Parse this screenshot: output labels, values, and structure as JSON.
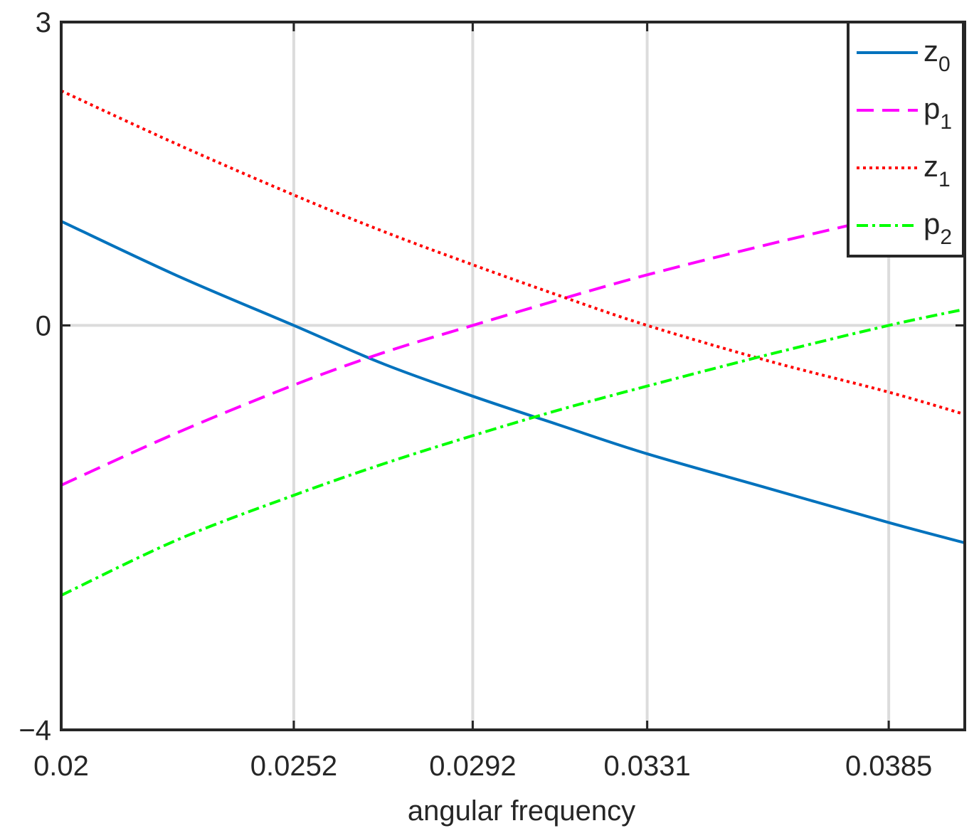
{
  "chart_data": {
    "type": "line",
    "title": "",
    "xlabel": "angular frequency",
    "ylabel": "",
    "xlim": [
      0.02,
      0.0402
    ],
    "ylim": [
      -4,
      3
    ],
    "xticks": [
      0.02,
      0.0252,
      0.0292,
      0.0331,
      0.0385
    ],
    "xtick_labels": [
      "0.02",
      "0.0252",
      "0.0292",
      "0.0331",
      "0.0385"
    ],
    "yticks": [
      -4,
      0,
      3
    ],
    "ytick_labels": [
      "−4",
      "0",
      "3"
    ],
    "grid": "vertical lines at x ticks, horizontal line at y = 0",
    "legend_position": "top-right",
    "x": [
      0.02,
      0.0226,
      0.0252,
      0.0272,
      0.0292,
      0.0311,
      0.0331,
      0.0358,
      0.0385,
      0.0402
    ],
    "series": [
      {
        "name": "z_0",
        "legend_main": "z",
        "legend_sub": "0",
        "color": "#0072BD",
        "style": "solid",
        "values": [
          1.03,
          0.49,
          0.0,
          -0.38,
          -0.7,
          -0.98,
          -1.27,
          -1.61,
          -1.95,
          -2.15
        ]
      },
      {
        "name": "p_1",
        "legend_main": "p",
        "legend_sub": "1",
        "color": "#FF00FF",
        "style": "dashed",
        "values": [
          -1.58,
          -1.06,
          -0.59,
          -0.27,
          0.0,
          0.25,
          0.5,
          0.8,
          1.08,
          1.25
        ]
      },
      {
        "name": "z_1",
        "legend_main": "z",
        "legend_sub": "1",
        "color": "#FF0000",
        "style": "dotted",
        "values": [
          2.32,
          1.79,
          1.29,
          0.93,
          0.6,
          0.3,
          0.0,
          -0.35,
          -0.66,
          -0.88
        ]
      },
      {
        "name": "p_2",
        "legend_main": "p",
        "legend_sub": "2",
        "color": "#00FF00",
        "style": "dash-dot",
        "values": [
          -2.67,
          -2.12,
          -1.68,
          -1.37,
          -1.09,
          -0.84,
          -0.6,
          -0.29,
          0.0,
          0.16
        ]
      }
    ]
  }
}
